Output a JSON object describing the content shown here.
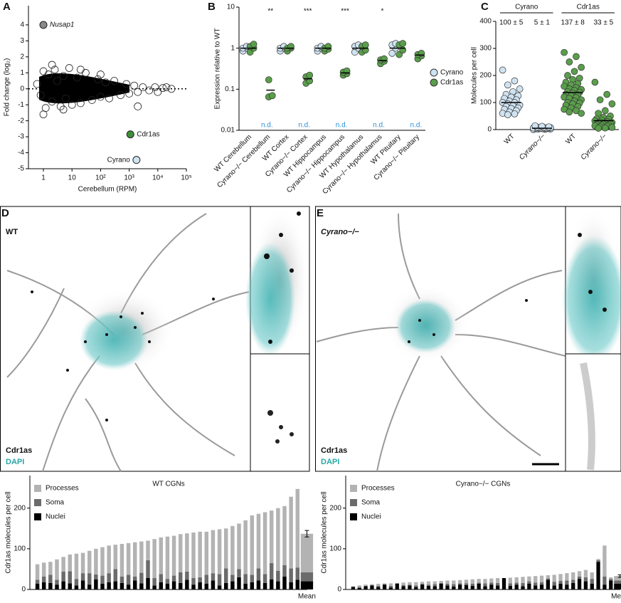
{
  "chart_data": [
    {
      "panel": "A",
      "type": "scatter",
      "x_label": "Cerebellum (RPM)",
      "y_label": "Fold change (log₂)",
      "log_x": true,
      "xlim": [
        0.3,
        100000
      ],
      "ylim": [
        -5,
        5.2
      ],
      "xticks": [
        1,
        10,
        {
          "value": 100,
          "label": "10²"
        },
        {
          "value": 1000,
          "label": "10³"
        },
        {
          "value": 10000,
          "label": "10⁴"
        },
        {
          "value": 100000,
          "label": "10⁵"
        }
      ],
      "yticks": [
        -5,
        -4,
        -3,
        -2,
        -1,
        0,
        1,
        2,
        3,
        4
      ],
      "reference_line": 0,
      "x": [
        0.6,
        0.8,
        1,
        1.2,
        1.5,
        2,
        2.5,
        3,
        4,
        5,
        6,
        8,
        10,
        15,
        20,
        30,
        50,
        80,
        100,
        150,
        200,
        300,
        500,
        800,
        1000,
        1500,
        2000,
        3000,
        5000,
        8000,
        10000,
        15000,
        20000,
        30000,
        1,
        2,
        5,
        20,
        100,
        2000
      ],
      "values": [
        0.3,
        -0.4,
        1.1,
        -1.2,
        0.9,
        -0.8,
        1.2,
        0.5,
        -1.1,
        0.8,
        -0.6,
        1.3,
        -1.0,
        0.7,
        -0.9,
        1.0,
        -0.7,
        0.6,
        -0.5,
        0.4,
        -0.6,
        0.5,
        -0.4,
        0.3,
        -0.3,
        0.2,
        -0.2,
        0.1,
        -0.1,
        0.1,
        -0.2,
        0.05,
        0.1,
        0,
        -1.6,
        1.5,
        -1.3,
        1.2,
        0.9,
        -1.1
      ],
      "highlights": [
        {
          "label": "Nusap1",
          "x": 1,
          "y": 4,
          "color": "#8a8a8a"
        },
        {
          "label": "Cdr1as",
          "x": 1100,
          "y": -2.85,
          "color": "#3f8f3a"
        },
        {
          "label": "Cyrano",
          "x": 1800,
          "y": -4.45,
          "color": "#cfe3f2"
        }
      ]
    },
    {
      "panel": "B",
      "type": "dot",
      "y_label": "Expression relative to WT",
      "log_y": true,
      "ylim": [
        0.01,
        10
      ],
      "yticks": [
        0.01,
        0.1,
        1,
        10
      ],
      "categories": [
        "WT Cerebellum",
        "Cyrano−/− Cerebellum",
        "WT Cortex",
        "Cyrano−/− Cortex",
        "WT Hippocampus",
        "Cyrano−/− Hippocampus",
        "WT Hypothalamus",
        "Cyrano−/− Hypothalamus",
        "WT Pituitary",
        "Cyrano−/− Pituitary"
      ],
      "significance": [
        null,
        "**",
        null,
        "***",
        null,
        "***",
        null,
        "*",
        null,
        null
      ],
      "nd_labels": [
        null,
        "n.d.",
        null,
        "n.d.",
        null,
        "n.d.",
        null,
        "n.d.",
        null,
        "n.d."
      ],
      "series": [
        {
          "name": "Cyrano",
          "color": "#cfe3f2",
          "values": [
            [
              0.85,
              1.0,
              1.0,
              1.1
            ],
            null,
            [
              0.85,
              1.0,
              1.0,
              1.1
            ],
            null,
            [
              0.85,
              1.0,
              1.0,
              1.1
            ],
            null,
            [
              0.8,
              1.0,
              1.1,
              1.2
            ],
            null,
            [
              0.75,
              1.0,
              1.2,
              1.3
            ],
            null
          ],
          "means": [
            1,
            null,
            1,
            null,
            1,
            null,
            1,
            null,
            1,
            null
          ]
        },
        {
          "name": "Cdr1as",
          "color": "#5a9e4b",
          "values": [
            [
              0.8,
              1.0,
              1.1,
              1.25
            ],
            [
              0.065,
              0.07,
              0.17
            ],
            [
              0.85,
              1.0,
              1.0,
              1.1
            ],
            [
              0.14,
              0.16,
              0.2,
              0.22
            ],
            [
              0.85,
              0.95,
              1.0,
              1.1
            ],
            [
              0.22,
              0.24,
              0.26,
              0.28
            ],
            [
              0.8,
              0.9,
              1.1,
              1.2
            ],
            [
              0.42,
              0.48,
              0.52,
              0.55
            ],
            [
              0.7,
              0.9,
              1.2,
              1.3
            ],
            [
              0.55,
              0.65,
              0.7,
              0.75
            ]
          ],
          "means": [
            1,
            0.095,
            1,
            0.18,
            1,
            0.25,
            1,
            0.5,
            1,
            0.68
          ]
        }
      ]
    },
    {
      "panel": "C",
      "type": "strip",
      "y_label": "Molecules per cell",
      "ylim": [
        0,
        400
      ],
      "yticks": [
        0,
        100,
        200,
        300,
        400
      ],
      "groups": [
        {
          "label": "Cyrano"
        },
        {
          "label": "Cdr1as"
        }
      ],
      "categories": [
        "WT",
        "Cyrano−/−",
        "WT",
        "Cyrano−/−"
      ],
      "colors": [
        "#cfe3f2",
        "#cfe3f2",
        "#5a9e4b",
        "#5a9e4b"
      ],
      "values": [
        [
          220,
          180,
          165,
          150,
          140,
          130,
          125,
          120,
          115,
          110,
          105,
          100,
          100,
          95,
          90,
          88,
          85,
          80,
          78,
          75,
          70,
          65,
          60,
          58,
          55
        ],
        [
          0,
          1,
          2,
          2,
          3,
          3,
          4,
          4,
          5,
          5,
          5,
          6,
          6,
          7,
          7,
          8,
          9,
          10,
          12,
          14
        ],
        [
          285,
          270,
          250,
          230,
          215,
          200,
          190,
          185,
          175,
          170,
          165,
          160,
          155,
          150,
          148,
          145,
          140,
          138,
          135,
          130,
          128,
          125,
          120,
          118,
          115,
          110,
          105,
          100,
          98,
          95,
          90,
          85,
          80,
          75,
          70,
          65,
          60
        ],
        [
          175,
          130,
          110,
          95,
          70,
          60,
          50,
          45,
          40,
          38,
          35,
          32,
          30,
          28,
          26,
          25,
          24,
          22,
          20,
          18,
          16,
          15,
          14,
          12,
          10,
          8,
          6,
          5
        ]
      ],
      "means": [
        100,
        5,
        137,
        33
      ],
      "mean_labels": [
        "100 ± 5",
        "5 ± 1",
        "137 ± 8",
        "33 ± 5"
      ]
    },
    {
      "panel": "D",
      "type": "stacked_bar",
      "title": "WT CGNs",
      "y_label": "Cdr1as molecules per cell",
      "ylim": [
        0,
        280
      ],
      "yticks": [
        0,
        100,
        200
      ],
      "categories": [
        null,
        null,
        null,
        null,
        null,
        null,
        null,
        null,
        null,
        null,
        null,
        null,
        null,
        null,
        null,
        null,
        null,
        null,
        null,
        null,
        null,
        null,
        null,
        null,
        null,
        null,
        null,
        null,
        null,
        null,
        null,
        null,
        null,
        null,
        null,
        null,
        null,
        null,
        null,
        null,
        null,
        "Mean"
      ],
      "series": [
        {
          "name": "Nuclei",
          "color": "#000000",
          "values": [
            14,
            18,
            16,
            12,
            20,
            15,
            10,
            22,
            12,
            25,
            14,
            18,
            20,
            16,
            12,
            22,
            15,
            28,
            10,
            18,
            14,
            20,
            16,
            24,
            12,
            18,
            14,
            22,
            10,
            16,
            20,
            30,
            14,
            18,
            22,
            16,
            25,
            20,
            32,
            18,
            24,
            20
          ]
        },
        {
          "name": "Soma",
          "color": "#6b6b6b",
          "values": [
            10,
            14,
            20,
            12,
            24,
            30,
            16,
            18,
            28,
            12,
            20,
            22,
            30,
            16,
            24,
            10,
            26,
            44,
            18,
            20,
            12,
            14,
            26,
            20,
            16,
            12,
            22,
            18,
            28,
            36,
            16,
            20,
            24,
            18,
            30,
            22,
            40,
            26,
            28,
            34,
            30,
            22
          ]
        },
        {
          "name": "Processes",
          "color": "#b3b3b3",
          "values": [
            38,
            34,
            32,
            50,
            36,
            41,
            62,
            50,
            55,
            63,
            70,
            68,
            60,
            80,
            78,
            84,
            77,
            48,
            96,
            90,
            104,
            98,
            94,
            94,
            112,
            112,
            106,
            106,
            110,
            98,
            120,
            112,
            132,
            146,
            134,
            152,
            129,
            154,
            145,
            176,
            193,
            95
          ]
        }
      ],
      "mean_error": 8
    },
    {
      "panel": "E",
      "type": "stacked_bar",
      "title": "Cyrano−/− CGNs",
      "y_label": "Cdr1as molecules per cell",
      "ylim": [
        0,
        280
      ],
      "yticks": [
        0,
        100,
        200
      ],
      "categories": [
        null,
        null,
        null,
        null,
        null,
        null,
        null,
        null,
        null,
        null,
        null,
        null,
        null,
        null,
        null,
        null,
        null,
        null,
        null,
        null,
        null,
        null,
        null,
        null,
        null,
        null,
        null,
        null,
        null,
        null,
        null,
        null,
        null,
        null,
        null,
        null,
        null,
        null,
        null,
        null,
        null,
        null,
        "Mean"
      ],
      "series": [
        {
          "name": "Nuclei",
          "color": "#000000",
          "values": [
            6,
            4,
            8,
            10,
            6,
            12,
            5,
            14,
            8,
            10,
            6,
            12,
            9,
            8,
            14,
            10,
            7,
            12,
            11,
            9,
            14,
            8,
            12,
            10,
            28,
            9,
            12,
            8,
            14,
            10,
            12,
            24,
            10,
            14,
            12,
            16,
            26,
            20,
            14,
            68,
            12,
            22,
            14
          ]
        },
        {
          "name": "Soma",
          "color": "#6b6b6b",
          "values": [
            1,
            2,
            1,
            1,
            3,
            1,
            4,
            1,
            3,
            2,
            4,
            2,
            3,
            5,
            2,
            4,
            6,
            3,
            4,
            5,
            3,
            7,
            5,
            6,
            0,
            6,
            5,
            8,
            6,
            7,
            6,
            3,
            9,
            7,
            10,
            8,
            6,
            10,
            12,
            4,
            20,
            4,
            8
          ]
        },
        {
          "name": "Processes",
          "color": "#b3b3b3",
          "values": [
            1,
            4,
            3,
            2,
            5,
            2,
            6,
            1,
            6,
            6,
            8,
            5,
            8,
            7,
            5,
            8,
            9,
            8,
            9,
            11,
            9,
            11,
            10,
            12,
            0,
            14,
            13,
            15,
            12,
            16,
            16,
            8,
            17,
            17,
            18,
            18,
            13,
            18,
            16,
            3,
            76,
            4,
            11
          ]
        }
      ],
      "mean_error": 3
    }
  ],
  "images": [
    {
      "panel": "D",
      "genotype": "WT",
      "stains": [
        "Cdr1as",
        "DAPI"
      ]
    },
    {
      "panel": "E",
      "genotype": "Cyrano−/−",
      "stains": [
        "Cdr1as",
        "DAPI"
      ]
    }
  ]
}
